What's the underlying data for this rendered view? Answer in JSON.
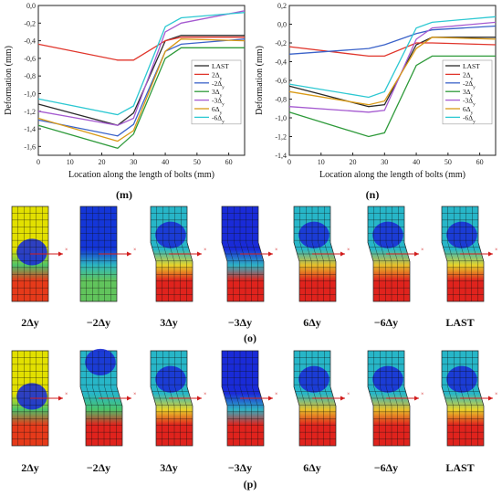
{
  "chart_data": [
    {
      "id": "m",
      "type": "line",
      "xlabel": "Location along the length of bolts (mm)",
      "ylabel": "Deformation (mm)",
      "xlim": [
        0,
        65
      ],
      "ylim": [
        -1.7,
        0.0
      ],
      "x_ticks": [
        "0",
        "10",
        "20",
        "30",
        "40",
        "50",
        "60"
      ],
      "y_ticks": [
        "0,0",
        "-0,2",
        "-0,4",
        "-0,6",
        "-0,8",
        "-1,0",
        "-1,2",
        "-1,4",
        "-1,6"
      ],
      "legend_position": "right-middle",
      "series": [
        {
          "name": "LAST",
          "color": "#2b2b2b",
          "x": [
            0,
            25,
            30,
            40,
            45,
            65
          ],
          "values": [
            -1.12,
            -1.36,
            -1.22,
            -0.4,
            -0.34,
            -0.34
          ]
        },
        {
          "name": "2Δy",
          "color": "#e0352b",
          "x": [
            0,
            25,
            30,
            40,
            45,
            65
          ],
          "values": [
            -0.44,
            -0.62,
            -0.62,
            -0.4,
            -0.36,
            -0.36
          ]
        },
        {
          "name": "-2Δy",
          "color": "#3a62c9",
          "x": [
            0,
            25,
            30,
            40,
            45,
            65
          ],
          "values": [
            -1.3,
            -1.48,
            -1.35,
            -0.52,
            -0.44,
            -0.38
          ]
        },
        {
          "name": "3Δy",
          "color": "#2e9a3a",
          "x": [
            0,
            25,
            30,
            40,
            45,
            65
          ],
          "values": [
            -1.36,
            -1.62,
            -1.46,
            -0.6,
            -0.48,
            -0.48
          ]
        },
        {
          "name": "-3Δy",
          "color": "#a55ad0",
          "x": [
            0,
            25,
            30,
            40,
            45,
            65
          ],
          "values": [
            -1.2,
            -1.36,
            -1.28,
            -0.3,
            -0.2,
            -0.06
          ]
        },
        {
          "name": "6Δy",
          "color": "#d99a16",
          "x": [
            0,
            25,
            30,
            40,
            45,
            65
          ],
          "values": [
            -1.28,
            -1.54,
            -1.42,
            -0.52,
            -0.38,
            -0.4
          ]
        },
        {
          "name": "-6Δy",
          "color": "#2dc8d2",
          "x": [
            0,
            25,
            30,
            40,
            45,
            65
          ],
          "values": [
            -1.06,
            -1.24,
            -1.14,
            -0.24,
            -0.14,
            -0.08
          ]
        }
      ]
    },
    {
      "id": "n",
      "type": "line",
      "xlabel": "Location along the length of bolts (mm)",
      "ylabel": "Deformation (mm)",
      "xlim": [
        0,
        65
      ],
      "ylim": [
        -1.4,
        0.2
      ],
      "x_ticks": [
        "0",
        "10",
        "20",
        "30",
        "40",
        "50",
        "60"
      ],
      "y_ticks": [
        "0,2",
        "0,0",
        "-0,2",
        "-0,4",
        "-0,6",
        "-0,8",
        "-1,0",
        "-1,2",
        "-1,4"
      ],
      "legend_position": "right-middle",
      "series": [
        {
          "name": "LAST",
          "color": "#2b2b2b",
          "x": [
            0,
            25,
            30,
            40,
            45,
            65
          ],
          "values": [
            -0.66,
            -0.88,
            -0.86,
            -0.22,
            -0.14,
            -0.14
          ]
        },
        {
          "name": "2Δy",
          "color": "#e0352b",
          "x": [
            0,
            25,
            30,
            40,
            45,
            65
          ],
          "values": [
            -0.24,
            -0.34,
            -0.34,
            -0.2,
            -0.2,
            -0.22
          ]
        },
        {
          "name": "-2Δy",
          "color": "#3a62c9",
          "x": [
            0,
            25,
            30,
            40,
            45,
            65
          ],
          "values": [
            -0.32,
            -0.26,
            -0.22,
            -0.1,
            -0.06,
            -0.02
          ]
        },
        {
          "name": "3Δy",
          "color": "#2e9a3a",
          "x": [
            0,
            25,
            30,
            40,
            45,
            65
          ],
          "values": [
            -0.94,
            -1.2,
            -1.16,
            -0.44,
            -0.34,
            -0.34
          ]
        },
        {
          "name": "-3Δy",
          "color": "#a55ad0",
          "x": [
            0,
            25,
            30,
            40,
            45,
            65
          ],
          "values": [
            -0.88,
            -0.94,
            -0.92,
            -0.16,
            -0.04,
            0.02
          ]
        },
        {
          "name": "6Δy",
          "color": "#d99a16",
          "x": [
            0,
            25,
            30,
            40,
            45,
            65
          ],
          "values": [
            -0.72,
            -0.86,
            -0.82,
            -0.26,
            -0.14,
            -0.16
          ]
        },
        {
          "name": "-6Δy",
          "color": "#2dc8d2",
          "x": [
            0,
            25,
            30,
            40,
            45,
            65
          ],
          "values": [
            -0.64,
            -0.78,
            -0.72,
            -0.04,
            0.02,
            0.08
          ]
        }
      ]
    }
  ],
  "panels": {
    "m": "(m)",
    "n": "(n)",
    "o": "(o)",
    "p": "(p)"
  },
  "legend_entries": [
    {
      "base": "LAST",
      "sub": ""
    },
    {
      "base": "2Δ",
      "sub": "y"
    },
    {
      "base": "-2Δ",
      "sub": "y"
    },
    {
      "base": "3Δ",
      "sub": "y"
    },
    {
      "base": "-3Δ",
      "sub": "y"
    },
    {
      "base": "6Δ",
      "sub": "y"
    },
    {
      "base": "-6Δ",
      "sub": "y"
    }
  ],
  "bolt_captions": [
    "2Δy",
    "−2Δy",
    "3Δy",
    "−3Δy",
    "6Δy",
    "−6Δy",
    "LAST"
  ],
  "bolt_rows": {
    "o": [
      {
        "top": "#e2e000",
        "mid": "#4cc46a",
        "bottom": "#e63a1a",
        "blob": "#1b2fd6",
        "blob_pos": "mid",
        "tilt": 0
      },
      {
        "top": "#1436d8",
        "mid": "#2db8c0",
        "bottom": "#61c45c",
        "blob": "#1436d8",
        "blob_pos": "none",
        "tilt": 0
      },
      {
        "top": "#27b6c8",
        "mid": "#e8d32a",
        "bottom": "#e0231d",
        "blob": "#1b2fd6",
        "blob_pos": "upper",
        "tilt": 6
      },
      {
        "top": "#1a2bd8",
        "mid": "#2fb3c4",
        "bottom": "#e0231d",
        "blob": "#1a2bd8",
        "blob_pos": "upper",
        "tilt": 6
      },
      {
        "top": "#27b6c8",
        "mid": "#e8c02a",
        "bottom": "#e0231d",
        "blob": "#1b2fd6",
        "blob_pos": "upper",
        "tilt": 6
      },
      {
        "top": "#27b6c8",
        "mid": "#e8c02a",
        "bottom": "#e0231d",
        "blob": "#1b2fd6",
        "blob_pos": "upper",
        "tilt": 6
      },
      {
        "top": "#27b6c8",
        "mid": "#e8d32a",
        "bottom": "#e0231d",
        "blob": "#1b2fd6",
        "blob_pos": "upper",
        "tilt": 6
      }
    ],
    "p": [
      {
        "top": "#e2e000",
        "mid": "#4cc46a",
        "bottom": "#e63a1a",
        "blob": "#1b2fd6",
        "blob_pos": "mid",
        "tilt": 0
      },
      {
        "top": "#27b6c8",
        "mid": "#4cc46a",
        "bottom": "#e0231d",
        "blob": "#1b2fd6",
        "blob_pos": "top",
        "tilt": 6
      },
      {
        "top": "#27b6c8",
        "mid": "#e8d32a",
        "bottom": "#e0231d",
        "blob": "#1b2fd6",
        "blob_pos": "upper",
        "tilt": 6
      },
      {
        "top": "#1a2bd8",
        "mid": "#2fb3c4",
        "bottom": "#e0231d",
        "blob": "#1a2bd8",
        "blob_pos": "upper",
        "tilt": 6
      },
      {
        "top": "#27b6c8",
        "mid": "#e8c02a",
        "bottom": "#e0231d",
        "blob": "#1b2fd6",
        "blob_pos": "upper",
        "tilt": 6
      },
      {
        "top": "#27b6c8",
        "mid": "#e8c02a",
        "bottom": "#e0231d",
        "blob": "#1b2fd6",
        "blob_pos": "upper",
        "tilt": 6
      },
      {
        "top": "#27b6c8",
        "mid": "#e8d32a",
        "bottom": "#e0231d",
        "blob": "#1b2fd6",
        "blob_pos": "upper",
        "tilt": 6
      }
    ]
  }
}
